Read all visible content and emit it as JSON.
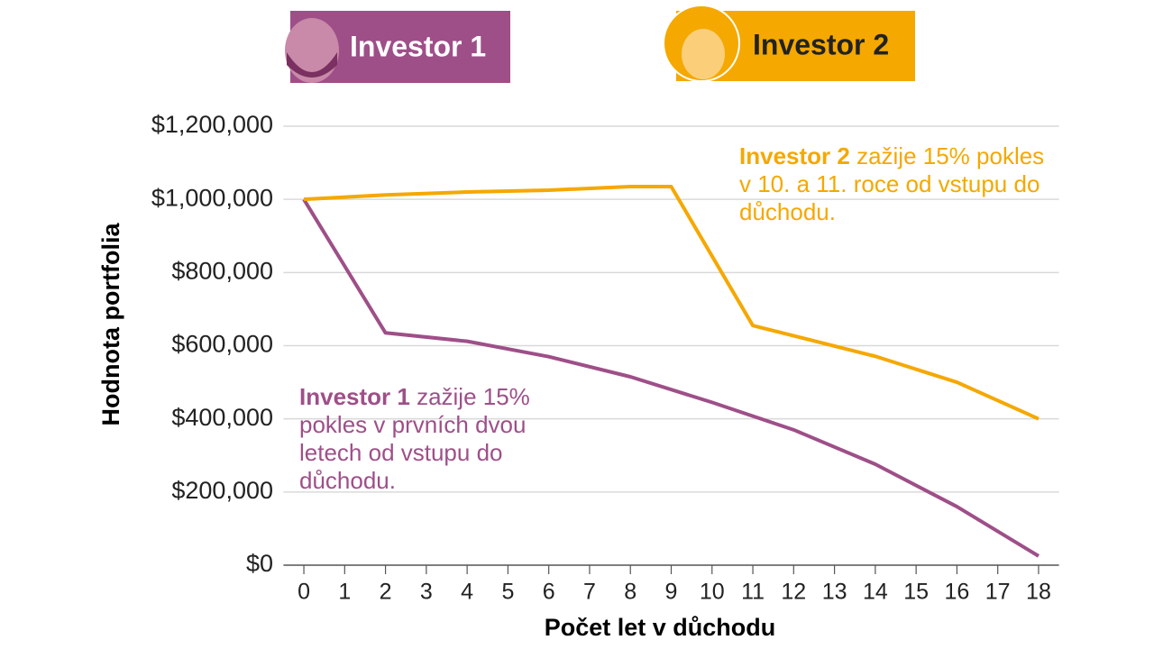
{
  "chart_data": {
    "type": "line",
    "x_label": "Počet let v důchodu",
    "y_label": "Hodnota portfolia",
    "xlim": [
      -0.5,
      18.5
    ],
    "xticks": [
      0,
      1,
      2,
      3,
      4,
      5,
      6,
      7,
      8,
      9,
      10,
      11,
      12,
      13,
      14,
      15,
      16,
      17,
      18
    ],
    "ylim": [
      0,
      1200000
    ],
    "yticks": [
      {
        "value": 0,
        "label": "$0"
      },
      {
        "value": 200000,
        "label": "$200,000"
      },
      {
        "value": 400000,
        "label": "$400,000"
      },
      {
        "value": 600000,
        "label": "$600,000"
      },
      {
        "value": 800000,
        "label": "$800,000"
      },
      {
        "value": 1000000,
        "label": "$1,000,000"
      },
      {
        "value": 1200000,
        "label": "$1,200,000"
      }
    ],
    "grid": true,
    "series": [
      {
        "name": "Investor 1",
        "color": "#9e4f88",
        "x": [
          0,
          2,
          4,
          6,
          8,
          10,
          12,
          14,
          16,
          18
        ],
        "values": [
          1000000,
          635000,
          612000,
          570000,
          515000,
          445000,
          370000,
          276000,
          160000,
          25000
        ]
      },
      {
        "name": "Investor 2",
        "color": "#f5a800",
        "x": [
          0,
          2,
          4,
          6,
          8,
          9,
          11,
          14,
          16,
          18
        ],
        "values": [
          1000000,
          1012000,
          1020000,
          1025000,
          1035000,
          1035000,
          655000,
          571000,
          500000,
          400000
        ]
      }
    ],
    "annotations": [
      {
        "bold": "Investor 1",
        "text": "zažije 15% pokles v prvních dvou letech od vstupu do důchodu."
      },
      {
        "bold": "Investor 2",
        "text": "zažije 15% pokles v 10. a 11. roce od vstupu do důchodu."
      }
    ]
  }
}
